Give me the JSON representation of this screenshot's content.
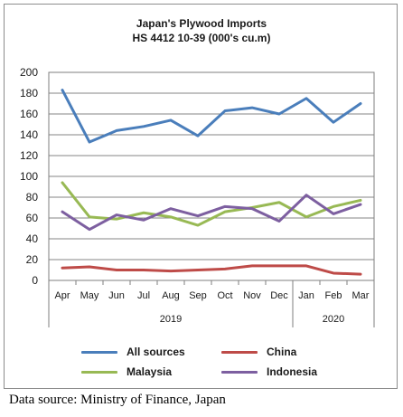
{
  "chart_data": {
    "type": "line",
    "title": "Japan's Plywood Imports",
    "subtitle": "HS 4412 10-39  (000's cu.m)",
    "categories": [
      "Apr",
      "May",
      "Jun",
      "Jul",
      "Aug",
      "Sep",
      "Oct",
      "Nov",
      "Dec",
      "Jan",
      "Feb",
      "Mar"
    ],
    "year_groups": [
      {
        "label": "2019",
        "from": "Apr",
        "to": "Dec"
      },
      {
        "label": "2020",
        "from": "Jan",
        "to": "Mar"
      }
    ],
    "ylim": [
      0,
      200
    ],
    "yticks": [
      0,
      20,
      40,
      60,
      80,
      100,
      120,
      140,
      160,
      180,
      200
    ],
    "grid": true,
    "legend_position": "bottom",
    "series": [
      {
        "name": "All sources",
        "color": "#4a7ebb",
        "values": [
          183,
          133,
          144,
          148,
          154,
          139,
          163,
          166,
          160,
          175,
          152,
          170
        ]
      },
      {
        "name": "China",
        "color": "#be4b48",
        "values": [
          12,
          13,
          10,
          10,
          9,
          10,
          11,
          14,
          14,
          14,
          7,
          6
        ]
      },
      {
        "name": "Malaysia",
        "color": "#98b954",
        "values": [
          94,
          61,
          59,
          65,
          61,
          53,
          66,
          70,
          75,
          61,
          71,
          77
        ]
      },
      {
        "name": "Indonesia",
        "color": "#7d5fa0",
        "values": [
          66,
          49,
          63,
          58,
          69,
          62,
          71,
          69,
          57,
          82,
          64,
          73
        ]
      }
    ]
  },
  "footer": {
    "source": "Data source: Ministry of Finance, Japan"
  }
}
